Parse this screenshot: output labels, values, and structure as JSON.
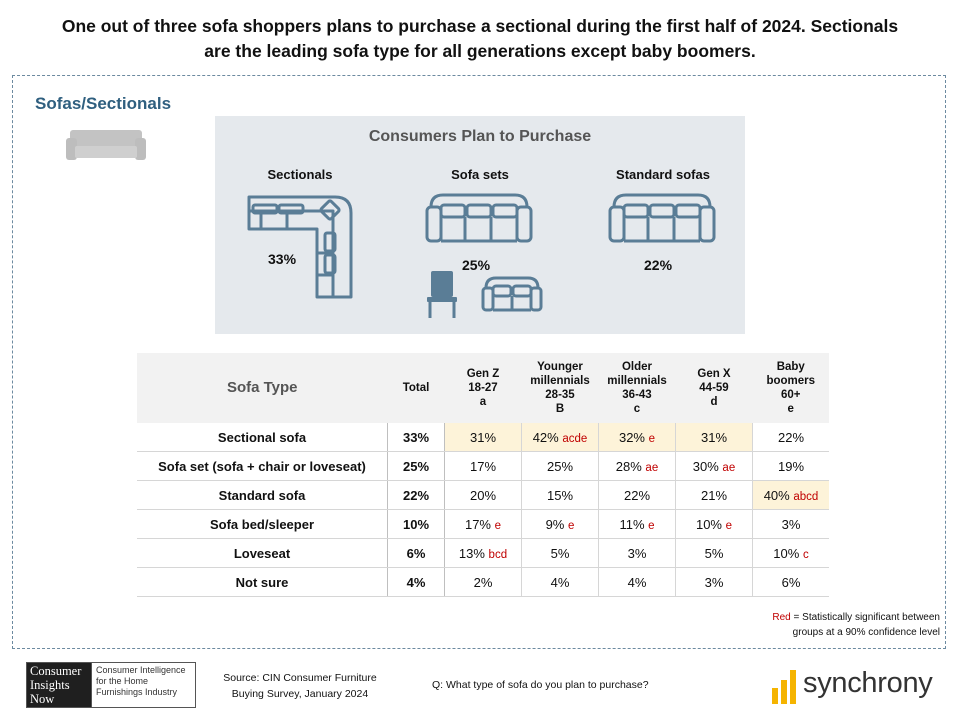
{
  "headline": "One out of three sofa shoppers plans to purchase a sectional during the first half of 2024. Sectionals are the leading sofa type for all generations except baby boomers.",
  "section_title": "Sofas/Sectionals",
  "panel": {
    "title": "Consumers Plan to Purchase",
    "items": [
      {
        "label": "Sectionals",
        "value": "33%",
        "icon": "sectional-icon"
      },
      {
        "label": "Sofa sets",
        "value": "25%",
        "icon": "sofa-set-icon"
      },
      {
        "label": "Standard sofas",
        "value": "22%",
        "icon": "standard-sofa-icon"
      }
    ]
  },
  "chart_data": {
    "type": "table",
    "columns": [
      {
        "label": "Sofa Type"
      },
      {
        "label": "Total"
      },
      {
        "label": "Gen Z",
        "sub": "18-27",
        "code": "a"
      },
      {
        "label": "Younger millennials",
        "sub": "28-35",
        "code": "B"
      },
      {
        "label": "Older millennials",
        "sub": "36-43",
        "code": "c"
      },
      {
        "label": "Gen X",
        "sub": "44-59",
        "code": "d"
      },
      {
        "label": "Baby boomers",
        "sub": "60+",
        "code": "e"
      }
    ],
    "rows": [
      {
        "label": "Sectional sofa",
        "total": "33%",
        "cells": [
          {
            "v": "31%",
            "sig": "",
            "hl": true
          },
          {
            "v": "42%",
            "sig": "acde",
            "hl": true
          },
          {
            "v": "32%",
            "sig": "e",
            "hl": true
          },
          {
            "v": "31%",
            "sig": "",
            "hl": true
          },
          {
            "v": "22%",
            "sig": "",
            "hl": false
          }
        ]
      },
      {
        "label": "Sofa set (sofa + chair or loveseat)",
        "total": "25%",
        "cells": [
          {
            "v": "17%",
            "sig": "",
            "hl": false
          },
          {
            "v": "25%",
            "sig": "",
            "hl": false
          },
          {
            "v": "28%",
            "sig": "ae",
            "hl": false
          },
          {
            "v": "30%",
            "sig": "ae",
            "hl": false
          },
          {
            "v": "19%",
            "sig": "",
            "hl": false
          }
        ]
      },
      {
        "label": "Standard sofa",
        "total": "22%",
        "cells": [
          {
            "v": "20%",
            "sig": "",
            "hl": false
          },
          {
            "v": "15%",
            "sig": "",
            "hl": false
          },
          {
            "v": "22%",
            "sig": "",
            "hl": false
          },
          {
            "v": "21%",
            "sig": "",
            "hl": false
          },
          {
            "v": "40%",
            "sig": "abcd",
            "hl": true
          }
        ]
      },
      {
        "label": "Sofa bed/sleeper",
        "total": "10%",
        "cells": [
          {
            "v": "17%",
            "sig": "e",
            "hl": false
          },
          {
            "v": "9%",
            "sig": "e",
            "hl": false
          },
          {
            "v": "11%",
            "sig": "e",
            "hl": false
          },
          {
            "v": "10%",
            "sig": "e",
            "hl": false
          },
          {
            "v": "3%",
            "sig": "",
            "hl": false
          }
        ]
      },
      {
        "label": "Loveseat",
        "total": "6%",
        "cells": [
          {
            "v": "13%",
            "sig": "bcd",
            "hl": false
          },
          {
            "v": "5%",
            "sig": "",
            "hl": false
          },
          {
            "v": "3%",
            "sig": "",
            "hl": false
          },
          {
            "v": "5%",
            "sig": "",
            "hl": false
          },
          {
            "v": "10%",
            "sig": "c",
            "hl": false
          }
        ]
      },
      {
        "label": "Not sure",
        "total": "4%",
        "cells": [
          {
            "v": "2%",
            "sig": "",
            "hl": false
          },
          {
            "v": "4%",
            "sig": "",
            "hl": false
          },
          {
            "v": "4%",
            "sig": "",
            "hl": false
          },
          {
            "v": "3%",
            "sig": "",
            "hl": false
          },
          {
            "v": "6%",
            "sig": "",
            "hl": false
          }
        ]
      }
    ]
  },
  "legend_note": {
    "red_word": "Red",
    "rest_line1": " = Statistically significant between",
    "line2": "groups at a 90% confidence level"
  },
  "footer": {
    "cin_logo_left": "Consumer Insights Now",
    "cin_logo_right": "Consumer Intelligence for the Home Furnishings Industry",
    "source_line1": "Source: CIN Consumer Furniture",
    "source_line2": "Buying Survey, January 2024",
    "question": "Q: What type of sofa do you plan to purchase?",
    "brand": "synchrony"
  },
  "colors": {
    "icon": "#5a7d96",
    "highlight": "#fdf3d9",
    "significance": "#c00000",
    "title": "#2f5f7f",
    "brand_yellow": "#f5b400"
  }
}
